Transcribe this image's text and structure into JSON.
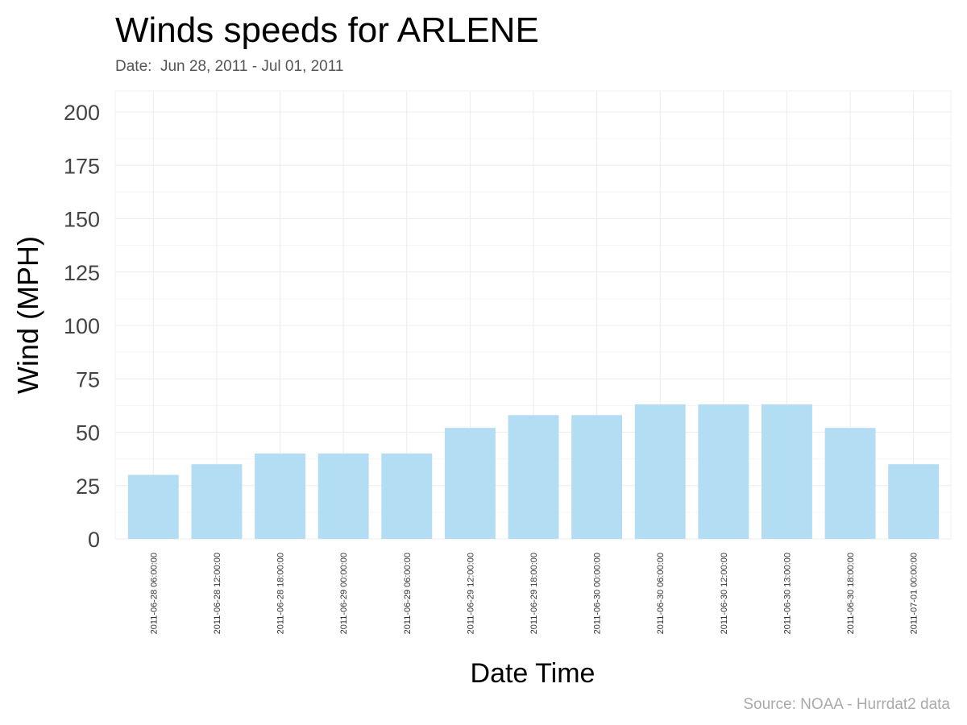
{
  "chart_data": {
    "type": "bar",
    "title": "Winds speeds for ARLENE",
    "subtitle": "Date:  Jun 28, 2011 - Jul 01, 2011",
    "xlabel": "Date Time",
    "ylabel": "Wind (MPH)",
    "caption": "Source: NOAA - Hurrdat2 data",
    "categories": [
      "2011-06-28 06:00:00",
      "2011-06-28 12:00:00",
      "2011-06-28 18:00:00",
      "2011-06-29 00:00:00",
      "2011-06-29 06:00:00",
      "2011-06-29 12:00:00",
      "2011-06-29 18:00:00",
      "2011-06-30 00:00:00",
      "2011-06-30 06:00:00",
      "2011-06-30 12:00:00",
      "2011-06-30 13:00:00",
      "2011-06-30 18:00:00",
      "2011-07-01 00:00:00"
    ],
    "values": [
      30,
      35,
      40,
      40,
      40,
      52,
      58,
      58,
      63,
      63,
      63,
      52,
      35
    ],
    "ylim": [
      0,
      200
    ],
    "yticks": [
      0,
      25,
      50,
      75,
      100,
      125,
      150,
      175,
      200
    ],
    "grid": true,
    "bar_color": "#b3ddf2"
  }
}
